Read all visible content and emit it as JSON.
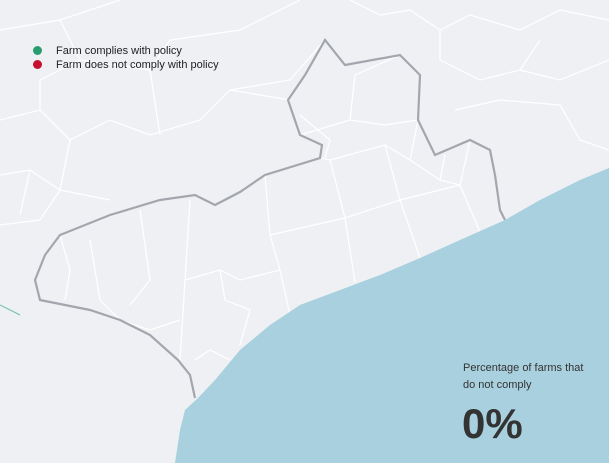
{
  "legend": [
    {
      "label": "Farm complies with policy"
    },
    {
      "label": "Farm does not comply with policy"
    }
  ],
  "stat": {
    "label": "Percentage of farms that do not comply",
    "value": "0%"
  }
}
